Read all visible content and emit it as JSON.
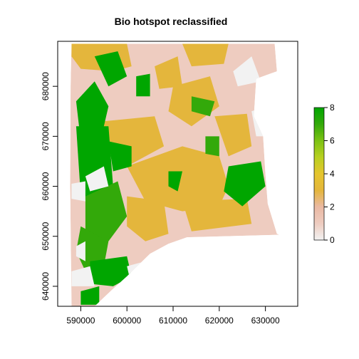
{
  "chart_data": {
    "type": "heatmap",
    "title": "Bio hotspot reclassified",
    "xlabel": "",
    "ylabel": "",
    "xlim": [
      585000,
      637000
    ],
    "ylim": [
      636000,
      689000
    ],
    "x_ticks": [
      590000,
      600000,
      610000,
      620000,
      630000
    ],
    "x_tick_labels": [
      "590000",
      "600000",
      "610000",
      "620000",
      "630000"
    ],
    "y_ticks": [
      640000,
      650000,
      660000,
      670000,
      680000
    ],
    "y_tick_labels": [
      "640000",
      "650000",
      "660000",
      "670000",
      "680000"
    ],
    "grid": false,
    "legend": {
      "type": "colorbar",
      "placement": "right",
      "range": [
        0,
        8
      ],
      "ticks": [
        0,
        2,
        4,
        6,
        8
      ],
      "tick_labels": [
        "0",
        "2",
        "4",
        "6",
        "8"
      ],
      "stops": [
        {
          "value": 0,
          "color": "#f2f2f2"
        },
        {
          "value": 1,
          "color": "#eeccc0"
        },
        {
          "value": 2,
          "color": "#eab9a3"
        },
        {
          "value": 3,
          "color": "#e4b63c"
        },
        {
          "value": 4,
          "color": "#e5c52e"
        },
        {
          "value": 5,
          "color": "#b8d020"
        },
        {
          "value": 6,
          "color": "#7cc213"
        },
        {
          "value": 7,
          "color": "#33a90a"
        },
        {
          "value": 8,
          "color": "#00a600"
        }
      ]
    },
    "raster": {
      "boundary": [
        [
          588000,
          688500
        ],
        [
          632000,
          688500
        ],
        [
          632500,
          683000
        ],
        [
          628000,
          681500
        ],
        [
          627500,
          674000
        ],
        [
          629500,
          670000
        ],
        [
          630000,
          662500
        ],
        [
          630500,
          656500
        ],
        [
          632500,
          650500
        ],
        [
          633000,
          650300
        ],
        [
          613000,
          649800
        ],
        [
          609000,
          648500
        ],
        [
          605000,
          646500
        ],
        [
          600000,
          642000
        ],
        [
          597000,
          639500
        ],
        [
          593000,
          636000
        ],
        [
          588000,
          636000
        ],
        [
          587700,
          660000
        ],
        [
          587800,
          680000
        ]
      ],
      "base_value": 1,
      "regions": [
        {
          "value": 3,
          "polygon": [
            [
              588000,
              688500
            ],
            [
              600000,
              688500
            ],
            [
              601000,
              684000
            ],
            [
              597000,
              683000
            ],
            [
              590000,
              683500
            ],
            [
              588000,
              686000
            ]
          ]
        },
        {
          "value": 3,
          "polygon": [
            [
              612000,
              688500
            ],
            [
              622000,
              688500
            ],
            [
              621000,
              684500
            ],
            [
              614000,
              684000
            ]
          ]
        },
        {
          "value": 3,
          "polygon": [
            [
              595000,
              673000
            ],
            [
              606000,
              674000
            ],
            [
              608000,
              668000
            ],
            [
              600000,
              664000
            ],
            [
              594000,
              668000
            ]
          ]
        },
        {
          "value": 3,
          "polygon": [
            [
              600000,
              664000
            ],
            [
              612000,
              668000
            ],
            [
              620000,
              666000
            ],
            [
              622000,
              660000
            ],
            [
              620000,
              656000
            ],
            [
              612000,
              655000
            ],
            [
              604000,
              657000
            ]
          ]
        },
        {
          "value": 3,
          "polygon": [
            [
              610000,
              680000
            ],
            [
              618000,
              682000
            ],
            [
              620000,
              676000
            ],
            [
              614000,
              672000
            ],
            [
              609000,
              675000
            ]
          ]
        },
        {
          "value": 3,
          "polygon": [
            [
              619000,
              674000
            ],
            [
              626000,
              674500
            ],
            [
              627000,
              668000
            ],
            [
              622000,
              666000
            ]
          ]
        },
        {
          "value": 3,
          "polygon": [
            [
              600000,
              658000
            ],
            [
              608000,
              657000
            ],
            [
              609000,
              650500
            ],
            [
              604000,
              649000
            ],
            [
              600000,
              652000
            ]
          ]
        },
        {
          "value": 3,
          "polygon": [
            [
              612000,
              657000
            ],
            [
              626000,
              657500
            ],
            [
              627000,
              652500
            ],
            [
              614000,
              651000
            ]
          ]
        },
        {
          "value": 3,
          "polygon": [
            [
              606000,
              684000
            ],
            [
              611000,
              686000
            ],
            [
              612000,
              680000
            ],
            [
              607000,
              679500
            ]
          ]
        },
        {
          "value": 8,
          "polygon": [
            [
              589000,
              677000
            ],
            [
              593000,
              681000
            ],
            [
              596000,
              676000
            ],
            [
              594000,
              668000
            ],
            [
              590000,
              669000
            ]
          ]
        },
        {
          "value": 8,
          "polygon": [
            [
              593000,
              686000
            ],
            [
              598000,
              687000
            ],
            [
              600000,
              682000
            ],
            [
              596000,
              680000
            ]
          ]
        },
        {
          "value": 8,
          "polygon": [
            [
              602000,
              682000
            ],
            [
              605000,
              682500
            ],
            [
              605000,
              678000
            ],
            [
              602000,
              678000
            ]
          ]
        },
        {
          "value": 8,
          "polygon": [
            [
              589000,
              672000
            ],
            [
              596000,
              672000
            ],
            [
              597000,
              660000
            ],
            [
              594000,
              655000
            ],
            [
              590000,
              658000
            ]
          ]
        },
        {
          "value": 7,
          "polygon": [
            [
              591000,
              658000
            ],
            [
              598000,
              661000
            ],
            [
              600000,
              654000
            ],
            [
              596000,
              649000
            ],
            [
              591000,
              651000
            ]
          ]
        },
        {
          "value": 7,
          "polygon": [
            [
              590000,
              652000
            ],
            [
              596000,
              649000
            ],
            [
              595000,
              644000
            ],
            [
              591000,
              643000
            ],
            [
              589000,
              647000
            ]
          ]
        },
        {
          "value": 8,
          "polygon": [
            [
              596000,
              669000
            ],
            [
              601000,
              668000
            ],
            [
              601000,
              664000
            ],
            [
              597000,
              663000
            ]
          ]
        },
        {
          "value": 8,
          "polygon": [
            [
              592000,
              645000
            ],
            [
              600000,
              646000
            ],
            [
              601000,
              642000
            ],
            [
              597000,
              640000
            ],
            [
              592000,
              640500
            ]
          ]
        },
        {
          "value": 8,
          "polygon": [
            [
              590000,
              639000
            ],
            [
              594000,
              640000
            ],
            [
              594000,
              636300
            ],
            [
              590000,
              636300
            ]
          ]
        },
        {
          "value": 7,
          "polygon": [
            [
              614000,
              678000
            ],
            [
              619000,
              677000
            ],
            [
              618000,
              674000
            ],
            [
              614000,
              675000
            ]
          ]
        },
        {
          "value": 7,
          "polygon": [
            [
              617000,
              670000
            ],
            [
              620000,
              670000
            ],
            [
              620000,
              666000
            ],
            [
              617000,
              666500
            ]
          ]
        },
        {
          "value": 8,
          "polygon": [
            [
              609000,
              663000
            ],
            [
              612000,
              663000
            ],
            [
              611000,
              659000
            ],
            [
              609000,
              660000
            ]
          ]
        },
        {
          "value": 8,
          "polygon": [
            [
              622000,
              664000
            ],
            [
              629000,
              665000
            ],
            [
              630000,
              660000
            ],
            [
              625000,
              656000
            ],
            [
              621000,
              659000
            ]
          ]
        },
        {
          "value": 0,
          "polygon": [
            [
              591000,
              662000
            ],
            [
              595000,
              664000
            ],
            [
              596000,
              660000
            ],
            [
              592000,
              659000
            ]
          ]
        },
        {
          "value": 0,
          "polygon": [
            [
              588000,
              660500
            ],
            [
              591000,
              661000
            ],
            [
              591000,
              657000
            ],
            [
              588000,
              657500
            ]
          ]
        },
        {
          "value": 0,
          "polygon": [
            [
              623000,
              683000
            ],
            [
              627000,
              686000
            ],
            [
              629000,
              681000
            ],
            [
              624000,
              680000
            ]
          ]
        },
        {
          "value": 0,
          "polygon": [
            [
              627000,
              675000
            ],
            [
              630000,
              676000
            ],
            [
              630500,
              670000
            ],
            [
              628000,
              670000
            ]
          ]
        },
        {
          "value": 0,
          "polygon": [
            [
              589000,
              648000
            ],
            [
              591000,
              649000
            ],
            [
              591000,
              645000
            ],
            [
              589000,
              646000
            ]
          ]
        },
        {
          "value": 0,
          "polygon": [
            [
              588000,
              643000
            ],
            [
              592000,
              644000
            ],
            [
              593000,
              640000
            ],
            [
              588000,
              640000
            ]
          ]
        },
        {
          "value": 0,
          "polygon": [
            [
              600000,
              644000
            ],
            [
              604000,
              645000
            ],
            [
              604000,
              642000
            ],
            [
              600500,
              642000
            ]
          ]
        }
      ]
    }
  }
}
